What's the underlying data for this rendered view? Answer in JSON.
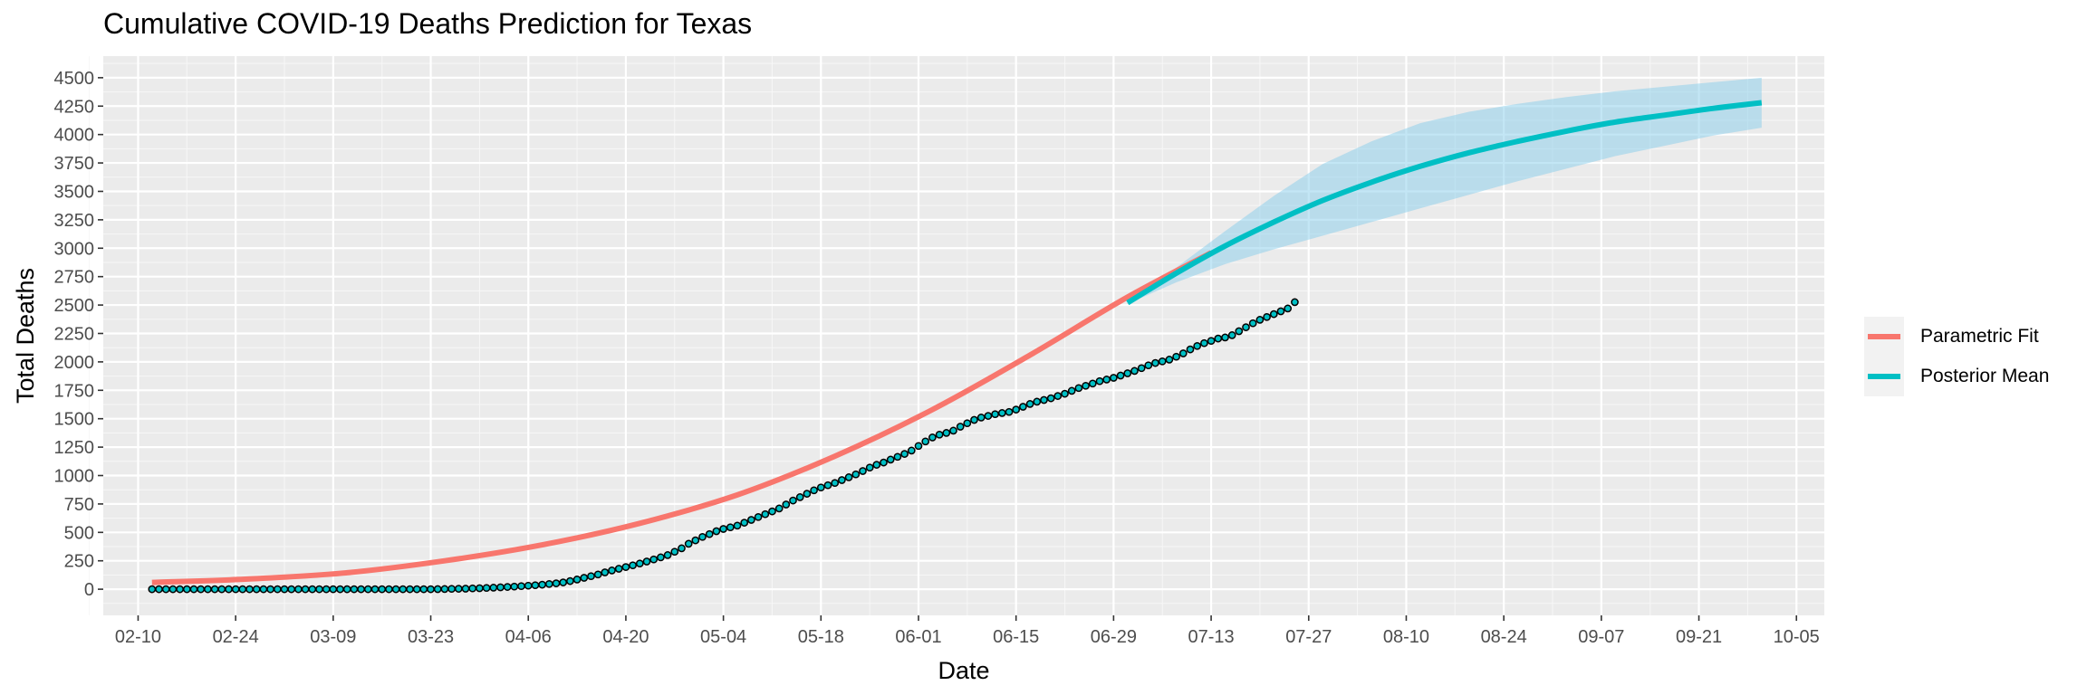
{
  "chart_data": {
    "type": "line",
    "title": "Cumulative COVID-19 Deaths Prediction for Texas",
    "xlabel": "Date",
    "ylabel": "Total Deaths",
    "x_tick_labels": [
      "02-10",
      "02-24",
      "03-09",
      "03-23",
      "04-06",
      "04-20",
      "05-04",
      "05-18",
      "06-01",
      "06-15",
      "06-29",
      "07-13",
      "07-27",
      "08-10",
      "08-24",
      "09-07",
      "09-21",
      "10-05"
    ],
    "x_ticks": [
      "2020-02-10",
      "2020-02-24",
      "2020-03-09",
      "2020-03-23",
      "2020-04-06",
      "2020-04-20",
      "2020-05-04",
      "2020-05-18",
      "2020-06-01",
      "2020-06-15",
      "2020-06-29",
      "2020-07-13",
      "2020-07-27",
      "2020-08-10",
      "2020-08-24",
      "2020-09-07",
      "2020-09-21",
      "2020-10-05"
    ],
    "xlim": [
      "2020-02-05",
      "2020-10-09"
    ],
    "y_ticks": [
      0,
      250,
      500,
      750,
      1000,
      1250,
      1500,
      1750,
      2000,
      2250,
      2500,
      2750,
      3000,
      3250,
      3500,
      3750,
      4000,
      4250,
      4500
    ],
    "ylim": [
      -230,
      4690
    ],
    "grid": true,
    "legend_position": "right",
    "series": [
      {
        "name": "Parametric Fit",
        "color": "#F8766D",
        "x": [
          "2020-02-12",
          "2020-02-26",
          "2020-03-11",
          "2020-03-25",
          "2020-04-08",
          "2020-04-22",
          "2020-05-06",
          "2020-05-20",
          "2020-06-03",
          "2020-06-17",
          "2020-07-01",
          "2020-07-13"
        ],
        "values": [
          60,
          90,
          145,
          250,
          390,
          580,
          830,
          1170,
          1580,
          2060,
          2570,
          2960
        ]
      },
      {
        "name": "Posterior Mean",
        "color": "#00BFC4",
        "x": [
          "2020-07-01",
          "2020-07-08",
          "2020-07-15",
          "2020-07-22",
          "2020-07-29",
          "2020-08-05",
          "2020-08-12",
          "2020-08-19",
          "2020-08-26",
          "2020-09-02",
          "2020-09-09",
          "2020-09-16",
          "2020-09-23",
          "2020-09-30"
        ],
        "values": [
          2520,
          2780,
          3020,
          3230,
          3420,
          3580,
          3720,
          3840,
          3940,
          4030,
          4110,
          4170,
          4230,
          4280
        ],
        "band_lower": [
          2510,
          2700,
          2860,
          2990,
          3110,
          3230,
          3350,
          3470,
          3590,
          3700,
          3810,
          3900,
          3990,
          4060
        ],
        "band_upper": [
          2530,
          2830,
          3150,
          3460,
          3740,
          3940,
          4100,
          4200,
          4270,
          4330,
          4380,
          4420,
          4460,
          4500
        ],
        "band_color": "#87CEEB"
      }
    ],
    "observed": {
      "start": "2020-02-12",
      "values": [
        0,
        0,
        0,
        0,
        0,
        0,
        0,
        0,
        0,
        0,
        0,
        0,
        0,
        0,
        0,
        0,
        0,
        0,
        0,
        0,
        0,
        0,
        0,
        0,
        0,
        0,
        0,
        0,
        0,
        0,
        0,
        0,
        0,
        0,
        0,
        0,
        0,
        0,
        0,
        0,
        0,
        1,
        2,
        3,
        4,
        5,
        7,
        9,
        11,
        14,
        17,
        20,
        23,
        27,
        31,
        35,
        40,
        46,
        52,
        60,
        72,
        85,
        100,
        115,
        130,
        148,
        165,
        180,
        195,
        210,
        226,
        244,
        262,
        280,
        300,
        330,
        360,
        400,
        430,
        460,
        485,
        510,
        530,
        545,
        560,
        585,
        610,
        635,
        660,
        685,
        710,
        745,
        780,
        810,
        840,
        870,
        895,
        915,
        935,
        960,
        985,
        1010,
        1040,
        1070,
        1095,
        1115,
        1140,
        1165,
        1190,
        1220,
        1260,
        1300,
        1335,
        1360,
        1375,
        1395,
        1430,
        1460,
        1490,
        1510,
        1525,
        1540,
        1550,
        1560,
        1580,
        1605,
        1630,
        1650,
        1665,
        1680,
        1700,
        1720,
        1745,
        1770,
        1790,
        1810,
        1830,
        1845,
        1860,
        1880,
        1900,
        1920,
        1945,
        1970,
        1990,
        2005,
        2020,
        2045,
        2075,
        2110,
        2140,
        2165,
        2185,
        2205,
        2215,
        2235,
        2270,
        2305,
        2340,
        2370,
        2395,
        2420,
        2445,
        2470,
        2525
      ],
      "fill": "#00BFC4",
      "stroke": "#000000"
    }
  }
}
